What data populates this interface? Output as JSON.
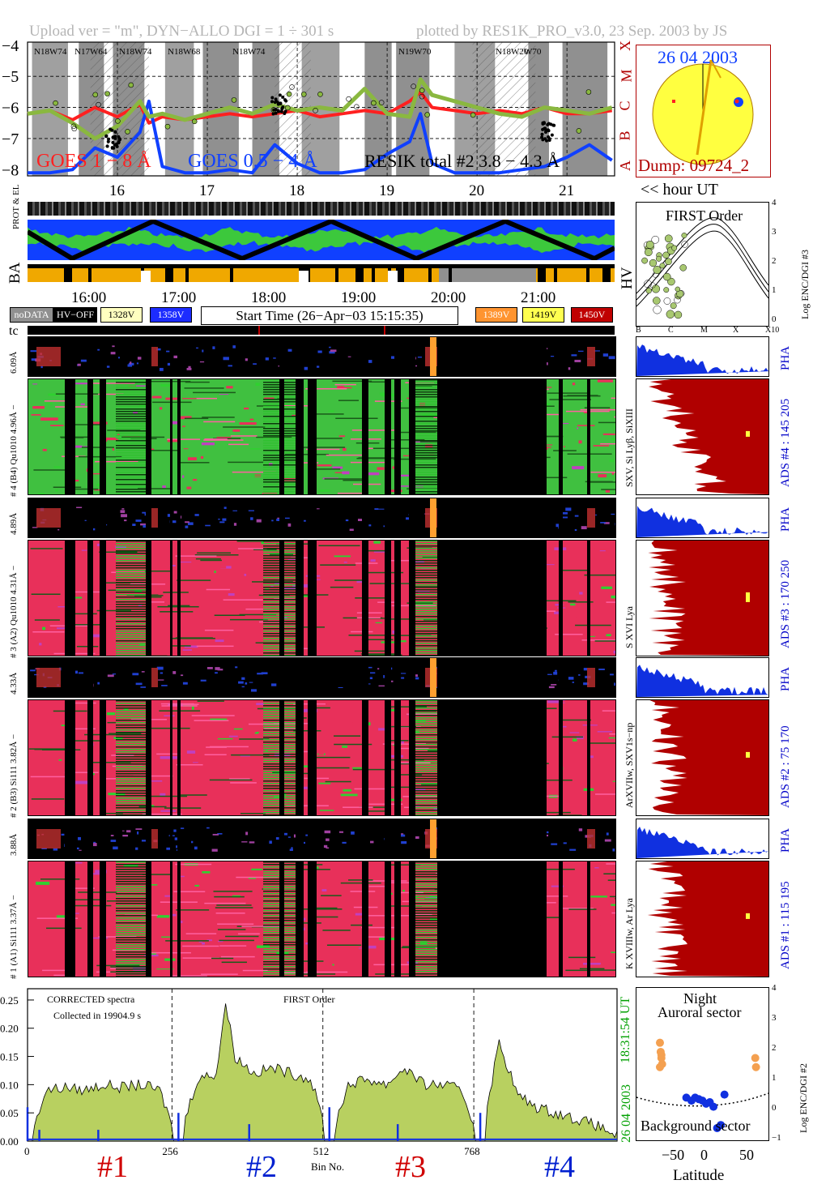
{
  "header": {
    "upload": "Upload ver = \"m\", DYN−ALLO DGI =   1 ÷ 301 s",
    "plotted": "plotted by RES1K_PRO_v3.0, 23 Sep. 2003 by JS"
  },
  "goes": {
    "y_ticks": [
      "−4",
      "−5",
      "−6",
      "−7",
      "−8"
    ],
    "x_ticks": [
      "16",
      "17",
      "18",
      "19",
      "20",
      "21"
    ],
    "class_labels": [
      "X",
      "M",
      "C",
      "B",
      "A"
    ],
    "legend_goes_long": "GOES 1 − 8 Å",
    "legend_goes_short": "GOES 0.5 − 4 Å",
    "legend_resik": "RESIK total #2  3.8 − 4.3 Å",
    "region_labels": [
      "N18W74",
      "N17W64",
      "N18W74",
      "N18W68",
      "N18W74",
      "N19W70",
      "N18W20",
      "W70"
    ],
    "colors": {
      "goes_long": "#ff2020",
      "goes_short": "#1040ff",
      "resik": "#8ab840",
      "night_gray": "#909090",
      "day_white": "#ffffff"
    }
  },
  "sun": {
    "date": "26 04 2003",
    "dump": "Dump: 09724_2",
    "disk_color": "#ffff40",
    "border_color": "#b00000"
  },
  "hour_ut_label": "<< hour UT",
  "prot_el_label": "PROT & EL",
  "ba_label": "BA",
  "hv_label": "HV",
  "time_axis": {
    "ticks": [
      "16:00",
      "17:00",
      "18:00",
      "19:00",
      "20:00",
      "21:00"
    ]
  },
  "legend": {
    "items": [
      {
        "label": "noDATA",
        "bg": "#909090",
        "fg": "#ffffff"
      },
      {
        "label": "HV−OFF",
        "bg": "#000000",
        "fg": "#ffffff"
      },
      {
        "label": "1328V",
        "bg": "#ffffc0",
        "fg": "#000000"
      },
      {
        "label": "1358V",
        "bg": "#1c2cff",
        "fg": "#ffffff"
      },
      {
        "label": "1389V",
        "bg": "#ff9430",
        "fg": "#ffffff"
      },
      {
        "label": "1419V",
        "bg": "#ffff50",
        "fg": "#000000"
      },
      {
        "label": "1450V",
        "bg": "#c00000",
        "fg": "#ffffff"
      }
    ],
    "start_time": "Start Time (26−Apr−03 15:15:35)"
  },
  "tc_label": "tc",
  "first_order": {
    "title": "FIRST Order",
    "ylabel": "Log ENC/DGI #3",
    "y_ticks": [
      "4",
      "3",
      "2",
      "1",
      "0"
    ],
    "x_ticks": [
      "B",
      "C",
      "M",
      "X",
      "X10"
    ]
  },
  "channels": [
    {
      "pha_label": "6.09Å",
      "spec_label": "# 4 (B4) Qu1010 4.96Å −",
      "lines": "SXV, Si Lyβ, SiXIII",
      "ads": "ADS #4 :   145 205"
    },
    {
      "pha_label": "4.89Å",
      "spec_label": "# 3 (A2) Qu1010 4.31Å −",
      "lines": "S XVI Lya",
      "ads": "ADS #3 :   170 250"
    },
    {
      "pha_label": "4.33Å",
      "spec_label": "# 2 (B3) Si111 3.82Å −",
      "lines": "ArXVIIw, SXV1s−np",
      "ads": "ADS #2 :    75 170"
    },
    {
      "pha_label": "3.88Å",
      "spec_label": "# 1 (A1) Si111 3.37Å −",
      "lines": "K XVIIIw, Ar Lya",
      "ads": "ADS #1 :   115 195"
    }
  ],
  "pha": "PHA",
  "spectrum": {
    "title_left": "CORRECTED spectra",
    "collected": "Collected in 19904.9 s",
    "order": "FIRST Order",
    "y_ticks": [
      "0.25",
      "0.20",
      "0.15",
      "0.10",
      "0.05",
      "0.00"
    ],
    "x_ticks": [
      "0",
      "256",
      "512",
      "768"
    ],
    "xlabel": "Bin No.",
    "channel_labels": [
      "#1",
      "#2",
      "#3",
      "#4"
    ],
    "channel_label_colors": [
      "#d00000",
      "#0020d0",
      "#d00000",
      "#0020d0"
    ],
    "timestamp": "18:31:54 UT",
    "date": "26 04 2003"
  },
  "aurora": {
    "night": "Night",
    "auroral": "Auroral sector",
    "background": "Background sector",
    "xlabel": "Latitude",
    "ylabel": "Log ENC/DGI #2",
    "x_ticks": [
      "−50",
      "0",
      "50"
    ],
    "y_ticks": [
      "4",
      "3",
      "2",
      "1",
      "0",
      "−1"
    ]
  },
  "chart_data": [
    {
      "type": "line",
      "title": "",
      "ylabel": "",
      "xlabel": "",
      "ylim": [
        -8.2,
        -3.9
      ],
      "x": [
        15.25,
        15.5,
        15.75,
        16.0,
        16.25,
        16.5,
        16.6,
        16.75,
        17.0,
        17.25,
        17.5,
        17.75,
        18.0,
        18.25,
        18.5,
        18.75,
        19.0,
        19.25,
        19.5,
        19.62,
        19.75,
        20.0,
        20.25,
        20.5,
        20.75,
        21.0,
        21.25,
        21.5,
        21.75
      ],
      "series": [
        {
          "name": "GOES 1 − 8 Å",
          "values": [
            -6.2,
            -6.1,
            -6.4,
            -6.0,
            -6.3,
            -5.9,
            -6.5,
            -6.3,
            -6.4,
            -6.3,
            -6.2,
            -6.3,
            -6.2,
            -6.1,
            -6.3,
            -6.2,
            -6.1,
            -6.2,
            -5.8,
            -5.5,
            -6.0,
            -6.1,
            -6.2,
            -6.1,
            -6.2,
            -6.0,
            -6.2,
            -6.2,
            -6.1
          ]
        },
        {
          "name": "GOES 0.5 − 4 Å",
          "values": [
            -8.1,
            -8.1,
            -8.0,
            -7.3,
            -7.6,
            -6.8,
            -5.8,
            -7.9,
            -8.1,
            -8.1,
            -8.0,
            -8.1,
            -7.2,
            -7.8,
            -8.1,
            -8.1,
            -8.0,
            -7.5,
            -7.1,
            -6.2,
            -7.8,
            -8.1,
            -8.1,
            -8.1,
            -8.0,
            -7.9,
            -7.6,
            -7.2,
            -7.7
          ]
        },
        {
          "name": "RESIK total #2  3.8 − 4.3 Å",
          "values": [
            -6.2,
            -6.1,
            -6.5,
            -7.0,
            -6.6,
            -5.8,
            -6.3,
            -6.2,
            -6.4,
            -6.2,
            -6.0,
            -6.2,
            -5.9,
            -6.1,
            -6.0,
            -6.1,
            -5.4,
            -6.2,
            -6.3,
            -5.1,
            -5.6,
            -5.8,
            -6.0,
            -6.2,
            -6.3,
            -6.0,
            -6.1,
            -6.2,
            -6.0
          ]
        }
      ]
    },
    {
      "type": "area",
      "title": "",
      "xlabel": "Bin No.",
      "ylabel": "",
      "ylim": [
        0,
        0.27
      ],
      "x": [
        0,
        32,
        64,
        96,
        128,
        160,
        192,
        224,
        256,
        288,
        320,
        336,
        352,
        384,
        416,
        448,
        480,
        512,
        544,
        576,
        608,
        640,
        672,
        704,
        736,
        768,
        800,
        832,
        864,
        896,
        928,
        960,
        1000
      ],
      "values": [
        0.0,
        0.09,
        0.095,
        0.09,
        0.1,
        0.095,
        0.1,
        0.09,
        0.0,
        0.11,
        0.12,
        0.245,
        0.15,
        0.12,
        0.13,
        0.12,
        0.11,
        0.0,
        0.1,
        0.11,
        0.1,
        0.13,
        0.1,
        0.1,
        0.09,
        0.0,
        0.175,
        0.08,
        0.06,
        0.05,
        0.04,
        0.03,
        0.01
      ]
    },
    {
      "type": "scatter",
      "title": "",
      "xlabel": "Latitude",
      "ylabel": "Log ENC/DGI #2",
      "xlim": [
        -90,
        90
      ],
      "ylim": [
        -1,
        4
      ],
      "series": [
        {
          "name": "Auroral sector",
          "x": [
            -58,
            -57,
            -56,
            -55,
            -58,
            -56,
            72,
            73
          ],
          "y": [
            2.2,
            1.9,
            1.7,
            1.5,
            1.4,
            1.8,
            1.7,
            1.4
          ]
        },
        {
          "name": "Background sector",
          "x": [
            -22,
            -15,
            -10,
            -5,
            0,
            5,
            10,
            15,
            20,
            25,
            30
          ],
          "y": [
            0.4,
            0.3,
            0.4,
            0.35,
            0.3,
            0.2,
            0.25,
            0.1,
            -0.6,
            -0.5,
            0.5
          ]
        }
      ]
    }
  ]
}
